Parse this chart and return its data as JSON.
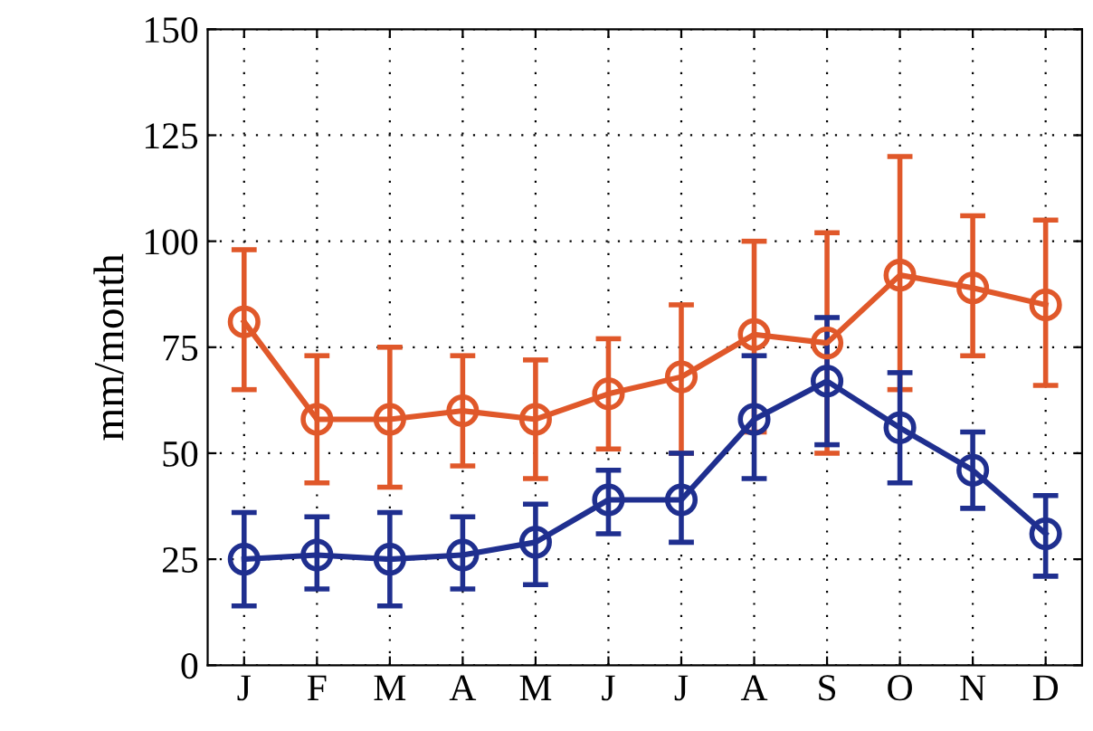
{
  "chart_data": {
    "type": "line",
    "ylabel": "mm/month",
    "categories": [
      "J",
      "F",
      "M",
      "A",
      "M",
      "J",
      "J",
      "A",
      "S",
      "O",
      "N",
      "D"
    ],
    "series": [
      {
        "color": "#e0582a",
        "values": [
          81,
          58,
          58,
          60,
          58,
          64,
          68,
          78,
          76,
          92,
          89,
          85
        ],
        "errors": [
          [
            65,
            98
          ],
          [
            43,
            73
          ],
          [
            42,
            75
          ],
          [
            47,
            73
          ],
          [
            44,
            72
          ],
          [
            51,
            77
          ],
          [
            50,
            85
          ],
          [
            55,
            100
          ],
          [
            50,
            102
          ],
          [
            65,
            120
          ],
          [
            73,
            106
          ],
          [
            66,
            105
          ]
        ]
      },
      {
        "color": "#1f2f8f",
        "values": [
          25,
          26,
          25,
          26,
          29,
          39,
          39,
          58,
          67,
          56,
          46,
          31
        ],
        "errors": [
          [
            14,
            36
          ],
          [
            18,
            35
          ],
          [
            14,
            36
          ],
          [
            18,
            35
          ],
          [
            19,
            38
          ],
          [
            31,
            46
          ],
          [
            29,
            50
          ],
          [
            44,
            73
          ],
          [
            52,
            82
          ],
          [
            43,
            69
          ],
          [
            37,
            55
          ],
          [
            21,
            40
          ]
        ]
      }
    ],
    "ylim": [
      0,
      150
    ],
    "yticks": [
      0,
      25,
      50,
      75,
      100,
      125,
      150
    ],
    "grid": true,
    "marker": "circle",
    "line_style": "solid"
  }
}
